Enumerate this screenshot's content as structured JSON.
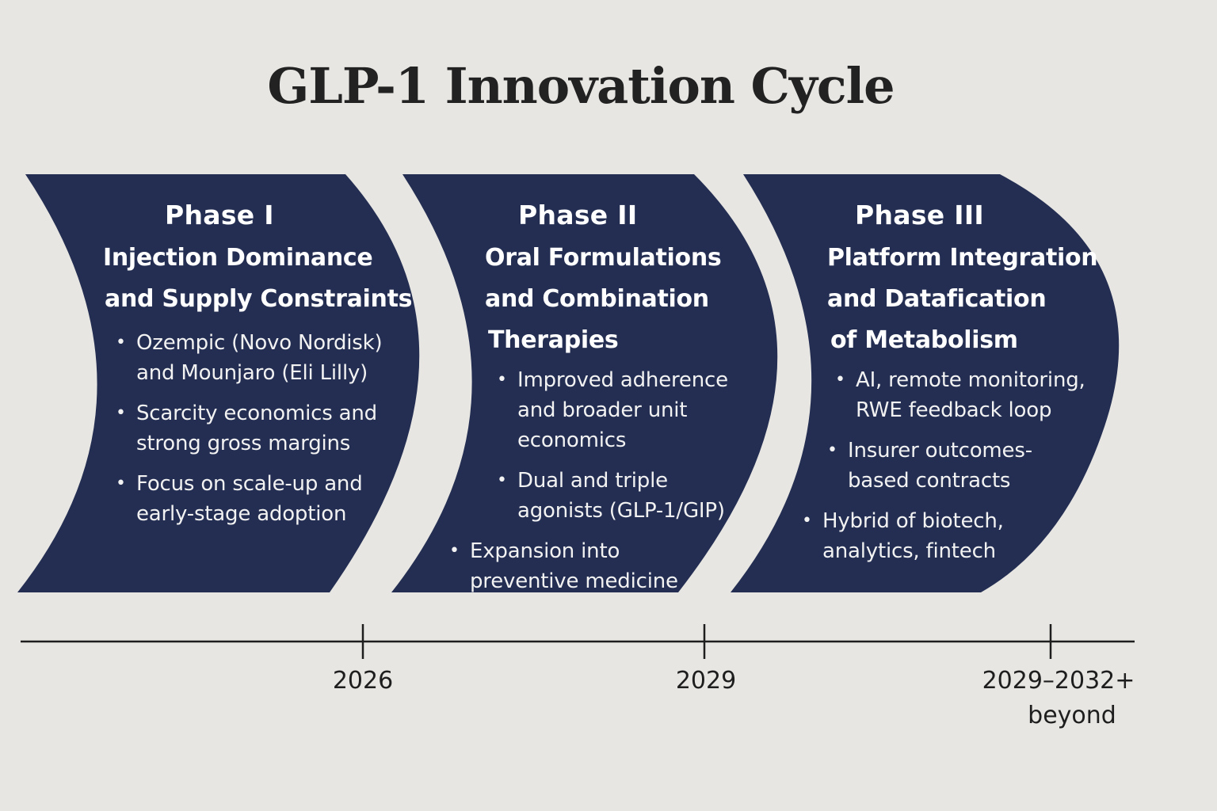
{
  "title": "GLP-1 Innovation Cycle",
  "colors": {
    "background": "#e8e6e2",
    "phase_fill": "#232e52",
    "timeline": "#1e1e1e"
  },
  "phases": [
    {
      "label": "Phase I",
      "subtitle_lines": [
        "Injection Dominance",
        "and Supply Constraints"
      ],
      "bullets": [
        [
          "Ozempic (Novo Nordisk)",
          "and Mounjaro (Eli Lilly)"
        ],
        [
          "Scarcity economics and",
          "strong gross margins"
        ],
        [
          "Focus on scale-up and",
          "early-stage adoption"
        ]
      ]
    },
    {
      "label": "Phase II",
      "subtitle_lines": [
        "Oral Formulations",
        "and Combination",
        "Therapies"
      ],
      "bullets": [
        [
          "Improved adherence",
          "and broader unit",
          "economics"
        ],
        [
          "Dual and triple",
          "agonists (GLP-1/GIP)"
        ],
        [
          "Expansion into",
          "preventive medicine"
        ]
      ]
    },
    {
      "label": "Phase III",
      "subtitle_lines": [
        "Platform Integration",
        "and Datafication",
        "of Metabolism"
      ],
      "bullets": [
        [
          "AI, remote monitoring,",
          "RWE feedback loop"
        ],
        [
          "Insurer outcomes-",
          "based contracts"
        ],
        [
          "Hybrid of biotech,",
          "analytics, fintech"
        ]
      ]
    }
  ],
  "timeline": {
    "ticks": [
      {
        "label_lines": [
          "2026"
        ]
      },
      {
        "label_lines": [
          "2029"
        ]
      },
      {
        "label_lines": [
          "2029–2032+",
          "beyond"
        ]
      }
    ]
  }
}
